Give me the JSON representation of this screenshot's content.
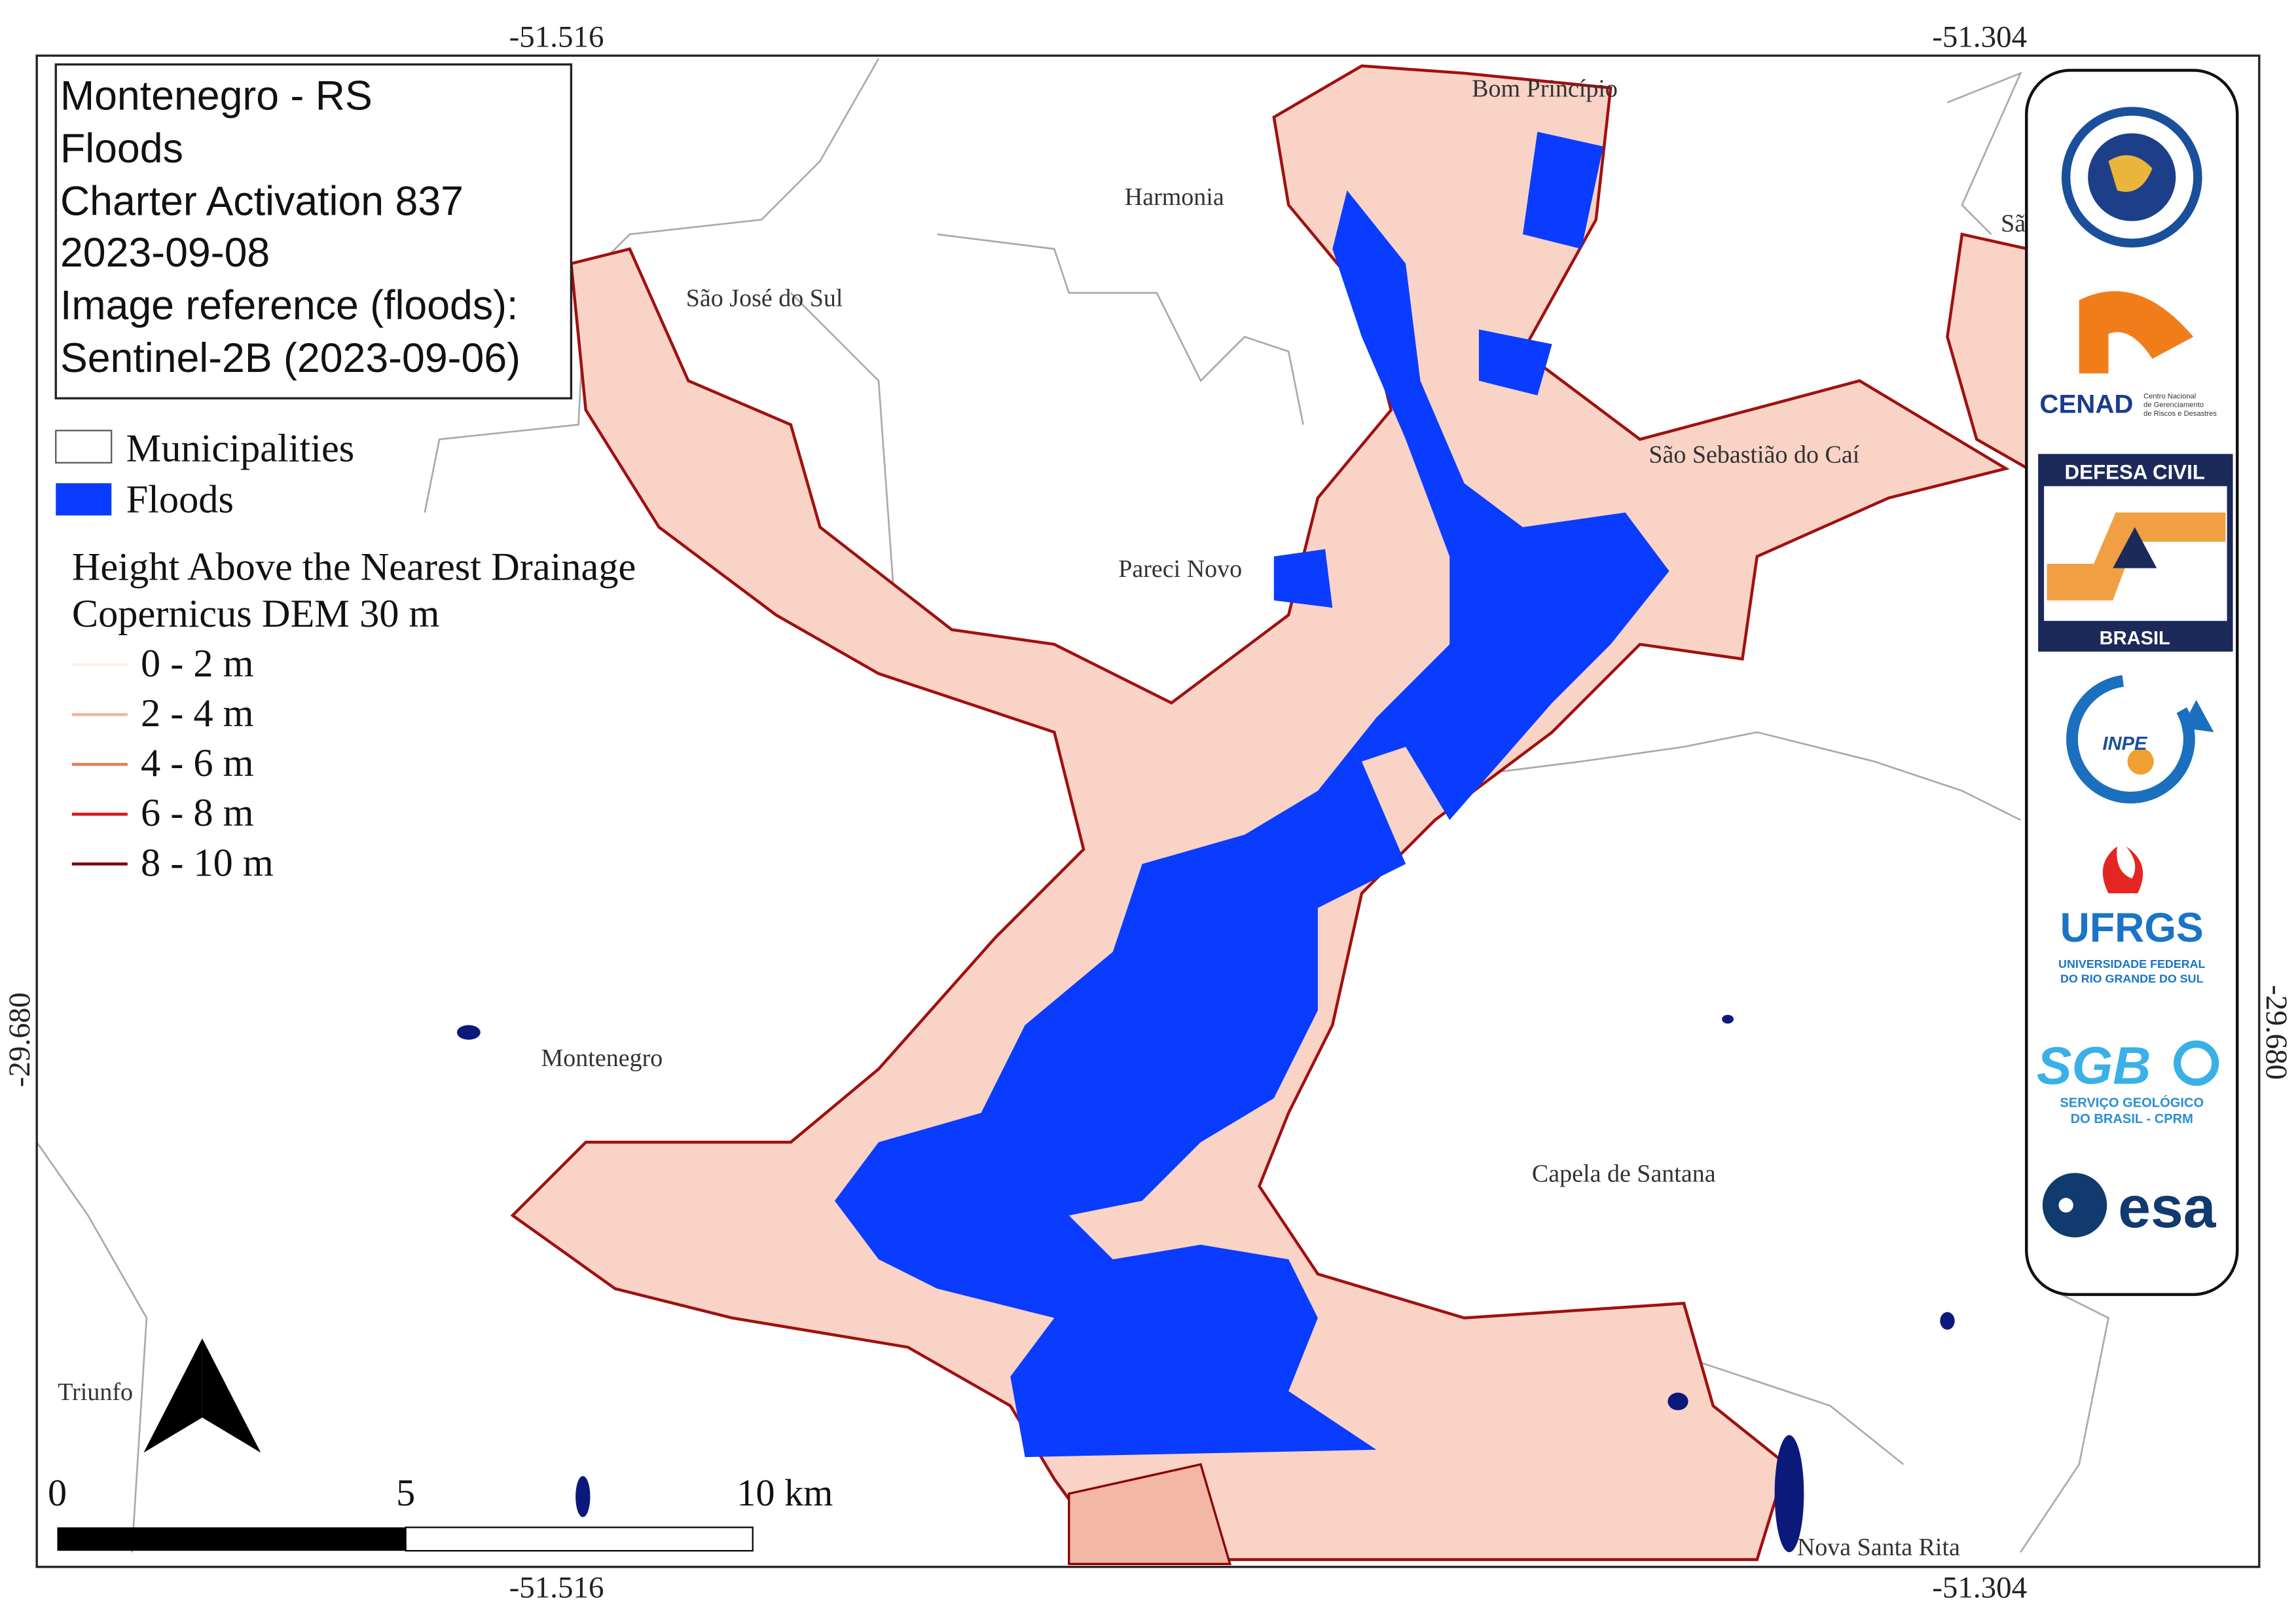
{
  "map_frame": {
    "coordinates": {
      "top_left": "-51.516",
      "top_right": "-51.304",
      "bottom_left": "-51.516",
      "bottom_right": "-51.304",
      "left": "-29.680",
      "right": "-29.680"
    }
  },
  "info_box": {
    "lines": [
      "Montenegro - RS",
      "Floods",
      "Charter Activation 837",
      "2023-09-08",
      "Image reference (floods):",
      "Sentinel-2B (2023-09-06)"
    ]
  },
  "legend": {
    "items": [
      "Municipalities",
      "Floods"
    ],
    "hand_title": [
      "Height Above the Nearest Drainage",
      "Copernicus DEM 30 m"
    ],
    "hand_classes": [
      "0 - 2 m",
      "2 - 4 m",
      "4 - 6 m",
      "6 - 8 m",
      "8 - 10 m"
    ]
  },
  "places": [
    "Bom Princípio",
    "Harmonia",
    "São José do Sul",
    "Sã",
    "São Sebastião do Caí",
    "Pareci Novo",
    "Montenegro",
    "Capela de Santana",
    "Triunfo",
    "Nova Santa Rita"
  ],
  "scale_bar": {
    "labels": [
      "0",
      "5",
      "10 km"
    ]
  },
  "logos": {
    "cenad": "CENAD",
    "cenad_sub": [
      "Centro Nacional",
      "de Gerenciamento",
      "de Riscos e Desastres"
    ],
    "defesa_top": "DEFESA CIVIL",
    "defesa_bottom": "BRASIL",
    "inpe": "INPE",
    "ufrgs": "UFRGS",
    "ufrgs_sub": [
      "UNIVERSIDADE FEDERAL",
      "DO RIO GRANDE DO SUL"
    ],
    "sgb": "SGB",
    "sgb_sub": [
      "SERVIÇO GEOLÓGICO",
      "DO BRASIL - CPRM"
    ],
    "esa": "esa"
  }
}
